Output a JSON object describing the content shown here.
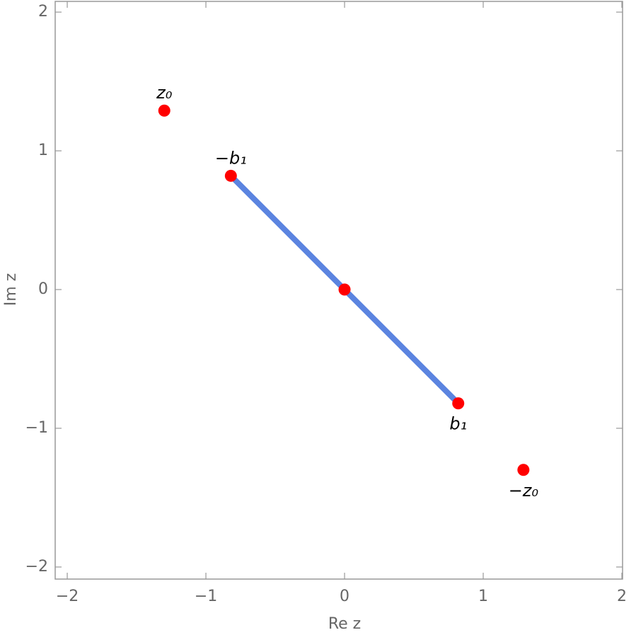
{
  "chart_data": {
    "type": "scatter",
    "x_label": "Re z",
    "y_label": "Im z",
    "xlim": [
      -2.087,
      2.005
    ],
    "ylim": [
      -2.087,
      2.077
    ],
    "xticks": [
      {
        "value": -2,
        "label": "−2"
      },
      {
        "value": -1,
        "label": "−1"
      },
      0,
      1,
      2
    ],
    "yticks": [
      {
        "value": -2,
        "label": "−2"
      },
      {
        "value": -1,
        "label": "−1"
      },
      0,
      1,
      2
    ],
    "segment": {
      "x": [
        -0.82,
        0.82
      ],
      "y": [
        0.82,
        -0.82
      ],
      "color": "#5b84e0"
    },
    "points": {
      "x": [
        -1.3,
        -0.82,
        0,
        0.82,
        1.29
      ],
      "y": [
        1.29,
        0.82,
        0,
        -0.82,
        -1.3
      ],
      "labels": [
        "z₀",
        "−b₁",
        null,
        "b₁",
        "−z₀"
      ],
      "color": "#ff0000"
    }
  }
}
